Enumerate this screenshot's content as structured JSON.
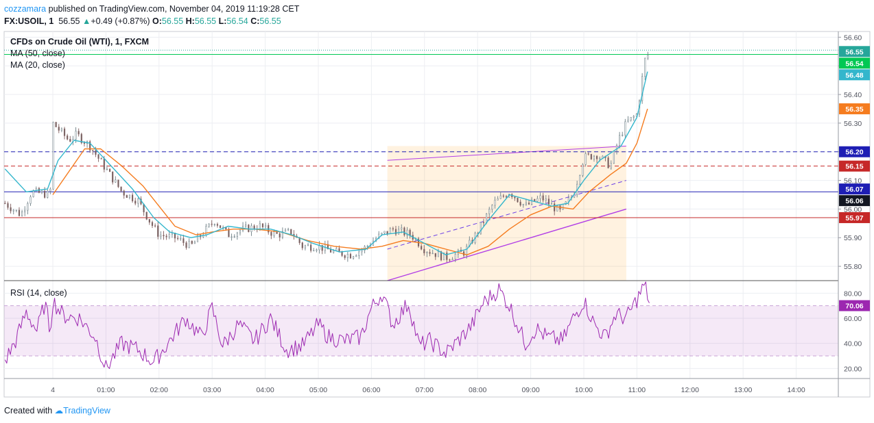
{
  "header": {
    "author": "cozzamara",
    "published": "published on TradingView.com, November 04, 2019 11:19:28 CET",
    "symbol": "FX:USOIL, 1",
    "last": "56.55",
    "change": "+0.49 (+0.87%)",
    "o_label": "O:",
    "o": "56.55",
    "h_label": "H:",
    "h": "56.55",
    "l_label": "L:",
    "l": "56.54",
    "c_label": "C:",
    "c": "56.55"
  },
  "footer": {
    "created_with": "Created with",
    "brand": "TradingView"
  },
  "colors": {
    "ma50": "#f57c1f",
    "ma20": "#33b6cc",
    "rsi": "#9c27b0",
    "blue_line": "#1e1eb4",
    "red_line": "#c62828",
    "green_line": "#00c853",
    "channel": "#b13de6",
    "up": "#26a69a",
    "down": "#ef5350"
  },
  "chart_data": {
    "type": "candlestick",
    "title": "CFDs on Crude Oil (WTI), 1, FXCM",
    "legend": [
      "MA (50, close)",
      "MA (20, close)"
    ],
    "ylim": [
      55.75,
      56.62
    ],
    "y_ticks": [
      "56.60",
      "56.50",
      "56.40",
      "56.30",
      "56.20",
      "56.10",
      "56.00",
      "55.90",
      "55.80"
    ],
    "x_ticks": [
      "4",
      "01:00",
      "02:00",
      "03:00",
      "04:00",
      "05:00",
      "06:00",
      "07:00",
      "08:00",
      "09:00",
      "10:00",
      "11:00",
      "12:00",
      "13:00",
      "14:00"
    ],
    "price_path": [
      [
        -0.9,
        56.02
      ],
      [
        -0.6,
        55.98
      ],
      [
        -0.4,
        56.06
      ],
      [
        -0.05,
        56.05
      ],
      [
        0.0,
        56.3
      ],
      [
        0.3,
        56.24
      ],
      [
        0.45,
        56.26
      ],
      [
        0.7,
        56.22
      ],
      [
        1.0,
        56.14
      ],
      [
        1.3,
        56.06
      ],
      [
        1.6,
        56.03
      ],
      [
        1.85,
        55.95
      ],
      [
        2.0,
        55.91
      ],
      [
        2.3,
        55.9
      ],
      [
        2.6,
        55.87
      ],
      [
        2.9,
        55.93
      ],
      [
        3.05,
        55.96
      ],
      [
        3.3,
        55.91
      ],
      [
        3.6,
        55.93
      ],
      [
        3.9,
        55.94
      ],
      [
        4.2,
        55.91
      ],
      [
        4.5,
        55.92
      ],
      [
        4.7,
        55.87
      ],
      [
        5.0,
        55.87
      ],
      [
        5.3,
        55.85
      ],
      [
        5.6,
        55.84
      ],
      [
        5.85,
        55.86
      ],
      [
        6.1,
        55.9
      ],
      [
        6.4,
        55.93
      ],
      [
        6.75,
        55.91
      ],
      [
        7.0,
        55.86
      ],
      [
        7.4,
        55.83
      ],
      [
        7.75,
        55.85
      ],
      [
        8.0,
        55.92
      ],
      [
        8.3,
        56.02
      ],
      [
        8.6,
        56.06
      ],
      [
        8.9,
        56.01
      ],
      [
        9.2,
        56.04
      ],
      [
        9.55,
        55.99
      ],
      [
        9.8,
        56.05
      ],
      [
        10.0,
        56.18
      ],
      [
        10.25,
        56.19
      ],
      [
        10.5,
        56.15
      ],
      [
        10.65,
        56.24
      ],
      [
        10.8,
        56.3
      ],
      [
        11.0,
        56.33
      ],
      [
        11.15,
        56.52
      ],
      [
        11.25,
        56.55
      ]
    ],
    "ma50_path": [
      [
        0.0,
        56.05
      ],
      [
        0.6,
        56.21
      ],
      [
        0.9,
        56.21
      ],
      [
        1.3,
        56.15
      ],
      [
        1.7,
        56.08
      ],
      [
        2.0,
        56.01
      ],
      [
        2.3,
        55.94
      ],
      [
        2.7,
        55.91
      ],
      [
        3.0,
        55.92
      ],
      [
        3.4,
        55.93
      ],
      [
        3.8,
        55.93
      ],
      [
        4.3,
        55.92
      ],
      [
        4.8,
        55.89
      ],
      [
        5.3,
        55.87
      ],
      [
        5.8,
        55.86
      ],
      [
        6.2,
        55.87
      ],
      [
        6.6,
        55.89
      ],
      [
        7.0,
        55.88
      ],
      [
        7.4,
        55.86
      ],
      [
        7.8,
        55.84
      ],
      [
        8.2,
        55.87
      ],
      [
        8.6,
        55.93
      ],
      [
        9.0,
        55.98
      ],
      [
        9.4,
        56.01
      ],
      [
        9.8,
        56.0
      ],
      [
        10.1,
        56.06
      ],
      [
        10.5,
        56.12
      ],
      [
        10.8,
        56.16
      ],
      [
        11.0,
        56.23
      ],
      [
        11.2,
        56.35
      ]
    ],
    "ma20_path": [
      [
        -0.9,
        56.14
      ],
      [
        -0.5,
        56.06
      ],
      [
        -0.1,
        56.07
      ],
      [
        0.1,
        56.17
      ],
      [
        0.4,
        56.24
      ],
      [
        0.7,
        56.23
      ],
      [
        1.1,
        56.15
      ],
      [
        1.5,
        56.07
      ],
      [
        1.9,
        55.97
      ],
      [
        2.2,
        55.92
      ],
      [
        2.6,
        55.9
      ],
      [
        2.9,
        55.91
      ],
      [
        3.3,
        55.94
      ],
      [
        3.7,
        55.93
      ],
      [
        4.1,
        55.93
      ],
      [
        4.5,
        55.91
      ],
      [
        4.9,
        55.88
      ],
      [
        5.4,
        55.85
      ],
      [
        5.9,
        55.86
      ],
      [
        6.2,
        55.91
      ],
      [
        6.6,
        55.92
      ],
      [
        7.0,
        55.88
      ],
      [
        7.4,
        55.84
      ],
      [
        7.8,
        55.86
      ],
      [
        8.2,
        55.96
      ],
      [
        8.6,
        56.05
      ],
      [
        9.0,
        56.03
      ],
      [
        9.4,
        56.01
      ],
      [
        9.7,
        56.02
      ],
      [
        10.0,
        56.1
      ],
      [
        10.3,
        56.17
      ],
      [
        10.7,
        56.22
      ],
      [
        11.0,
        56.32
      ],
      [
        11.2,
        56.48
      ]
    ],
    "levels": [
      {
        "value": 56.2,
        "label": "56.20",
        "style": "dashed",
        "color": "#1e1eb4"
      },
      {
        "value": 56.15,
        "label": "56.15",
        "style": "dashed",
        "color": "#c62828"
      },
      {
        "value": 56.06,
        "label": "56.06",
        "style": "solid",
        "color": "#1e1eb4"
      },
      {
        "value": 55.97,
        "label": "55.97",
        "style": "solid",
        "color": "#c62828"
      },
      {
        "value": 56.54,
        "label": "56.54",
        "style": "solid",
        "color": "#00c853"
      }
    ],
    "price_badges": [
      {
        "label": "56.55",
        "value": 56.55,
        "color": "#26a69a"
      },
      {
        "label": "56.54",
        "value": 56.54,
        "color": "#00c853"
      },
      {
        "label": "56.48",
        "value": 56.48,
        "color": "#33b6cc"
      },
      {
        "label": "56.35",
        "value": 56.35,
        "color": "#f57c1f"
      },
      {
        "label": "56.20",
        "value": 56.2,
        "color": "#1e1eb4"
      },
      {
        "label": "56.15",
        "value": 56.15,
        "color": "#c62828"
      },
      {
        "label": "56.07",
        "value": 56.07,
        "color": "#1e1eb4"
      },
      {
        "label": "56.06",
        "value": 56.06,
        "color": "#131722"
      },
      {
        "label": "55.97",
        "value": 55.97,
        "color": "#c62828"
      }
    ],
    "channel": {
      "start_time": 6.3,
      "end_time": 10.8,
      "upper": [
        56.17,
        56.22
      ],
      "lower": [
        55.75,
        56.0
      ],
      "mid": [
        55.86,
        56.1
      ]
    },
    "rsi": {
      "title": "RSI (14, close)",
      "ylim": [
        12,
        90
      ],
      "y_ticks": [
        "80.00",
        "60.00",
        "40.00",
        "20.00"
      ],
      "upper_band": 70,
      "lower_band": 30,
      "current": "70.06",
      "path": [
        [
          -0.9,
          26
        ],
        [
          -0.7,
          42
        ],
        [
          -0.5,
          65
        ],
        [
          -0.3,
          50
        ],
        [
          -0.15,
          72
        ],
        [
          -0.05,
          50
        ],
        [
          0.0,
          74
        ],
        [
          0.2,
          62
        ],
        [
          0.5,
          60
        ],
        [
          0.8,
          45
        ],
        [
          1.0,
          20
        ],
        [
          1.3,
          40
        ],
        [
          1.6,
          35
        ],
        [
          1.9,
          25
        ],
        [
          2.2,
          42
        ],
        [
          2.5,
          60
        ],
        [
          2.8,
          45
        ],
        [
          3.0,
          68
        ],
        [
          3.2,
          38
        ],
        [
          3.5,
          55
        ],
        [
          3.8,
          42
        ],
        [
          4.1,
          60
        ],
        [
          4.4,
          35
        ],
        [
          4.7,
          38
        ],
        [
          5.0,
          55
        ],
        [
          5.2,
          45
        ],
        [
          5.5,
          42
        ],
        [
          5.8,
          45
        ],
        [
          6.0,
          68
        ],
        [
          6.2,
          80
        ],
        [
          6.4,
          55
        ],
        [
          6.7,
          72
        ],
        [
          6.9,
          38
        ],
        [
          7.1,
          42
        ],
        [
          7.4,
          32
        ],
        [
          7.7,
          45
        ],
        [
          7.9,
          55
        ],
        [
          8.1,
          72
        ],
        [
          8.4,
          83
        ],
        [
          8.6,
          70
        ],
        [
          8.9,
          40
        ],
        [
          9.1,
          52
        ],
        [
          9.3,
          45
        ],
        [
          9.6,
          42
        ],
        [
          9.8,
          60
        ],
        [
          10.0,
          74
        ],
        [
          10.2,
          55
        ],
        [
          10.4,
          45
        ],
        [
          10.6,
          63
        ],
        [
          10.8,
          60
        ],
        [
          11.0,
          75
        ],
        [
          11.15,
          87
        ],
        [
          11.25,
          70
        ]
      ]
    }
  }
}
